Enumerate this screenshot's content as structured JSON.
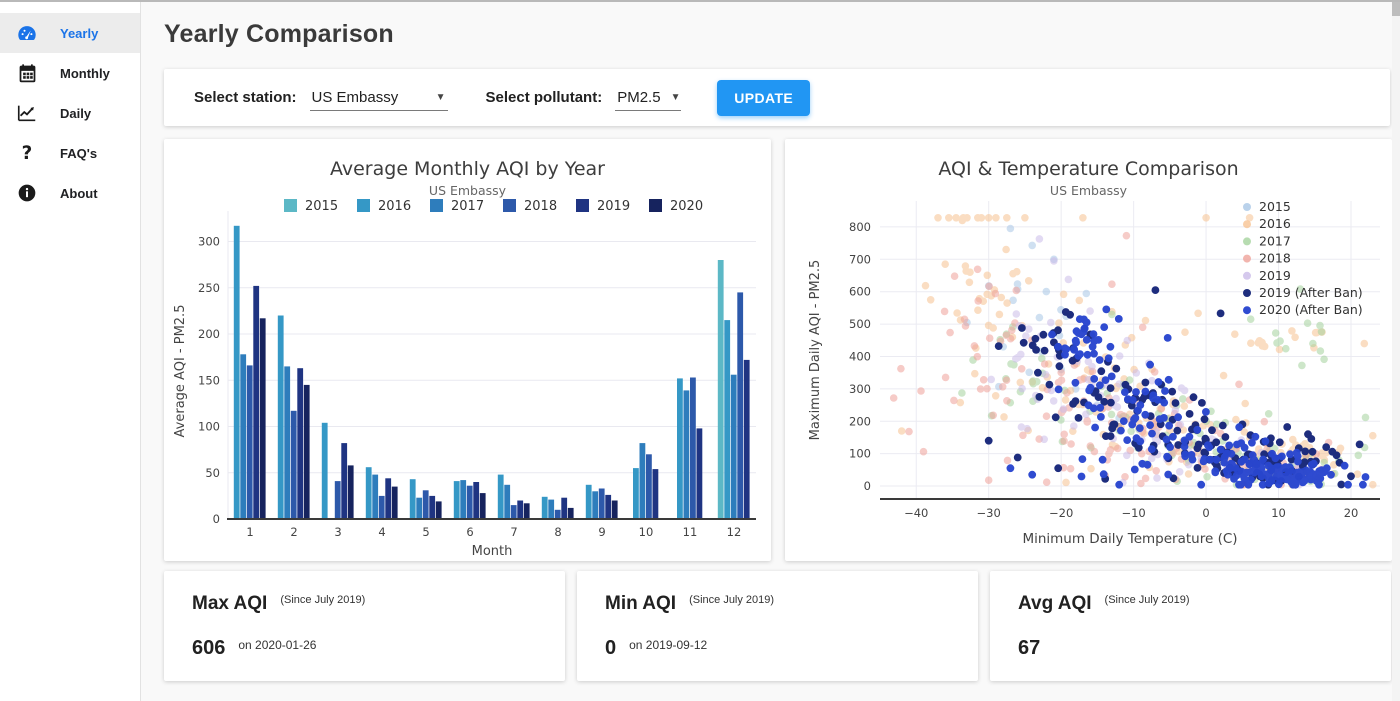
{
  "sidebar": {
    "items": [
      {
        "label": "Yearly",
        "icon": "gauge-icon",
        "active": true
      },
      {
        "label": "Monthly",
        "icon": "calendar-icon",
        "active": false
      },
      {
        "label": "Daily",
        "icon": "line-chart-icon",
        "active": false
      },
      {
        "label": "FAQ's",
        "icon": "question-icon",
        "active": false
      },
      {
        "label": "About",
        "icon": "info-icon",
        "active": false
      }
    ]
  },
  "header": {
    "title": "Yearly Comparison"
  },
  "controls": {
    "station_label": "Select station:",
    "station_value": "US Embassy",
    "pollutant_label": "Select pollutant:",
    "pollutant_value": "PM2.5",
    "update_label": "UPDATE",
    "accent_color": "#2196f3"
  },
  "stats": [
    {
      "title": "Max AQI",
      "subtitle": "(Since July 2019)",
      "value": "606",
      "detail": "on 2020-01-26"
    },
    {
      "title": "Min AQI",
      "subtitle": "(Since July 2019)",
      "value": "0",
      "detail": "on 2019-09-12"
    },
    {
      "title": "Avg AQI",
      "subtitle": "(Since July 2019)",
      "value": "67",
      "detail": ""
    }
  ],
  "chart_data": [
    {
      "type": "bar",
      "title": "Average Monthly AQI by Year",
      "subtitle": "US Embassy",
      "xlabel": "Month",
      "ylabel": "Average AQI - PM2.5",
      "categories": [
        1,
        2,
        3,
        4,
        5,
        6,
        7,
        8,
        9,
        10,
        11,
        12
      ],
      "ylim": [
        0,
        320
      ],
      "yticks": [
        0,
        50,
        100,
        150,
        200,
        250,
        300
      ],
      "grid": true,
      "legend_position": "top",
      "note": "null = no data that month; 0 in Mar-2017 renders as an empty slot",
      "series": [
        {
          "name": "2015",
          "color": "#5cb8c6",
          "values": [
            null,
            null,
            null,
            null,
            null,
            null,
            null,
            null,
            null,
            null,
            null,
            280
          ]
        },
        {
          "name": "2016",
          "color": "#3598c6",
          "values": [
            317,
            220,
            104,
            56,
            43,
            41,
            48,
            24,
            37,
            55,
            152,
            215
          ]
        },
        {
          "name": "2017",
          "color": "#2e7dbc",
          "values": [
            178,
            165,
            0,
            48,
            23,
            42,
            37,
            21,
            30,
            82,
            139,
            156
          ]
        },
        {
          "name": "2018",
          "color": "#2d59aa",
          "values": [
            166,
            117,
            41,
            25,
            31,
            36,
            15,
            10,
            33,
            70,
            153,
            245
          ]
        },
        {
          "name": "2019",
          "color": "#1f3482",
          "values": [
            252,
            163,
            82,
            44,
            25,
            40,
            20,
            23,
            26,
            54,
            98,
            172
          ]
        },
        {
          "name": "2020",
          "color": "#16235e",
          "values": [
            217,
            145,
            58,
            35,
            19,
            28,
            17,
            12,
            20,
            null,
            null,
            null
          ]
        }
      ]
    },
    {
      "type": "scatter",
      "title": "AQI & Temperature Comparison",
      "subtitle": "US Embassy",
      "xlabel": "Minimum Daily Temperature (C)",
      "ylabel": "Maximum Daily AQI - PM2.5",
      "xlim": [
        -45,
        24
      ],
      "ylim": [
        -40,
        880
      ],
      "xticks": [
        -40,
        -30,
        -20,
        -10,
        0,
        10,
        20
      ],
      "yticks": [
        0,
        100,
        200,
        300,
        400,
        500,
        600,
        700,
        800
      ],
      "grid": true,
      "legend_position": "top-right-inside",
      "note": "daily points; AQI values above 800 are capped near 830; clusters are [centerX, centerY, spreadX, spreadY, count] estimated from the plot",
      "series": [
        {
          "name": "2015",
          "color": "#a9c7e6",
          "opacity": 0.55,
          "radius": 3.8,
          "clusters": [
            [
              -24,
              520,
              4,
              120,
              10
            ]
          ],
          "points": [
            [
              -27,
              795
            ],
            [
              -24,
              743
            ],
            [
              -21,
              700
            ],
            [
              -30,
              618
            ],
            [
              -26,
              608
            ],
            [
              -23,
              520
            ],
            [
              -33,
              505
            ],
            [
              -28,
              430
            ],
            [
              -20,
              360
            ],
            [
              -18,
              300
            ],
            [
              -15,
              250
            ],
            [
              -12,
              210
            ]
          ]
        },
        {
          "name": "2016",
          "color": "#f7c392",
          "opacity": 0.55,
          "radius": 3.8,
          "clusters": [
            [
              -30,
              560,
              4,
              120,
              28
            ],
            [
              -20,
              380,
              5,
              130,
              32
            ],
            [
              -8,
              220,
              6,
              100,
              38
            ],
            [
              5,
              110,
              6,
              55,
              40
            ],
            [
              10,
              455,
              5,
              25,
              16
            ],
            [
              12,
              75,
              5,
              40,
              28
            ]
          ],
          "points": [
            [
              -37,
              828
            ],
            [
              -35.5,
              828
            ],
            [
              -34.5,
              828
            ],
            [
              -33.5,
              828
            ],
            [
              -33,
              828
            ],
            [
              -31.5,
              828
            ],
            [
              -31,
              828
            ],
            [
              -30,
              828
            ],
            [
              -29,
              828
            ],
            [
              -27.5,
              828
            ],
            [
              -25,
              828
            ],
            [
              -17,
              828
            ],
            [
              0,
              828
            ],
            [
              6,
              828
            ],
            [
              -36,
              685
            ],
            [
              -38,
              575
            ],
            [
              -42,
              170
            ]
          ]
        },
        {
          "name": "2017",
          "color": "#a5d39e",
          "opacity": 0.55,
          "radius": 3.8,
          "clusters": [
            [
              -25,
              330,
              5,
              90,
              18
            ],
            [
              -12,
              220,
              6,
              80,
              25
            ],
            [
              0,
              130,
              6,
              60,
              25
            ],
            [
              8,
              70,
              6,
              38,
              30
            ],
            [
              12,
              430,
              4,
              45,
              12
            ]
          ],
          "points": [
            [
              13,
              608
            ],
            [
              22,
              212
            ],
            [
              21,
              95
            ],
            [
              -13,
              530
            ]
          ]
        },
        {
          "name": "2018",
          "color": "#efa29a",
          "opacity": 0.55,
          "radius": 3.8,
          "clusters": [
            [
              -30,
              430,
              4,
              130,
              32
            ],
            [
              -18,
              280,
              5,
              110,
              32
            ],
            [
              -6,
              150,
              6,
              70,
              38
            ],
            [
              6,
              70,
              6,
              38,
              38
            ]
          ],
          "points": [
            [
              -11,
              773
            ],
            [
              -13,
              623
            ],
            [
              -41,
              168
            ],
            [
              -39,
              106
            ],
            [
              -30,
              18
            ],
            [
              -22,
              12
            ],
            [
              -9,
              8
            ]
          ]
        },
        {
          "name": "2019",
          "color": "#cbbce9",
          "opacity": 0.55,
          "radius": 3.8,
          "clusters": [
            [
              -22,
              430,
              4,
              110,
              22
            ],
            [
              -13,
              260,
              5,
              90,
              25
            ],
            [
              -2,
              130,
              5,
              55,
              22
            ],
            [
              6,
              60,
              5,
              32,
              16
            ]
          ],
          "points": [
            [
              -23,
              763
            ],
            [
              -21,
              695
            ],
            [
              -19,
              638
            ],
            [
              -16,
              540
            ]
          ]
        },
        {
          "name": "2019 (After Ban)",
          "color": "#17277a",
          "opacity": 0.97,
          "radius": 3.9,
          "clusters": [
            [
              -20,
              430,
              3.5,
              70,
              28
            ],
            [
              -12,
              260,
              4,
              80,
              30
            ],
            [
              -4,
              150,
              5,
              60,
              35
            ],
            [
              4,
              100,
              5,
              45,
              40
            ],
            [
              10,
              60,
              4,
              28,
              40
            ]
          ],
          "points": [
            [
              -7,
              605
            ],
            [
              2,
              533
            ],
            [
              -30,
              140
            ],
            [
              -26,
              88
            ],
            [
              18,
              95
            ],
            [
              20,
              30
            ]
          ]
        },
        {
          "name": "2020 (After Ban)",
          "color": "#2946cf",
          "opacity": 0.97,
          "radius": 3.9,
          "clusters": [
            [
              -17,
              460,
              2.5,
              50,
              26
            ],
            [
              -13,
              330,
              4,
              80,
              28
            ],
            [
              -7,
              160,
              5,
              70,
              40
            ],
            [
              3,
              80,
              5,
              40,
              55
            ],
            [
              11,
              38,
              4,
              20,
              95
            ]
          ],
          "points": [
            [
              -27,
              55
            ],
            [
              -24,
              35
            ],
            [
              22,
              28
            ]
          ]
        }
      ]
    }
  ]
}
